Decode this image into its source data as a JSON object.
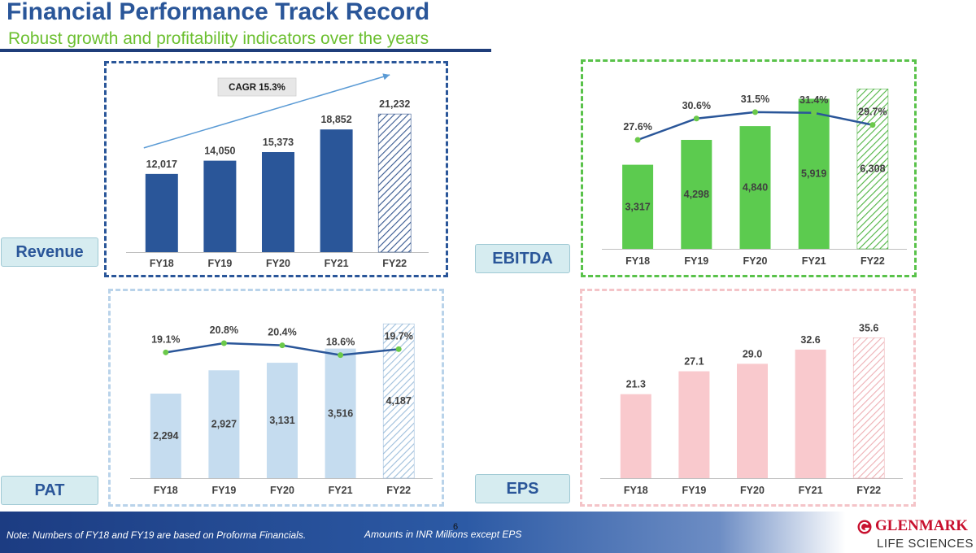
{
  "header": {
    "title": "Financial Performance Track Record",
    "subtitle": "Robust growth and profitability indicators over the years"
  },
  "colors": {
    "revenue": "#2a5699",
    "ebitda": "#5ccb4f",
    "pat": "#c5dcef",
    "eps": "#f9c9cd",
    "margin_line": "#2a5699",
    "margin_point": "#6bc94a"
  },
  "panels": {
    "revenue": {
      "label": "Revenue"
    },
    "ebitda": {
      "label": "EBITDA"
    },
    "pat": {
      "label": "PAT"
    },
    "eps": {
      "label": "EPS"
    }
  },
  "chart_data": [
    {
      "id": "revenue",
      "type": "bar",
      "title": "Revenue",
      "categories": [
        "FY18",
        "FY19",
        "FY20",
        "FY21",
        "FY22"
      ],
      "values": [
        12017,
        14050,
        15373,
        18852,
        21232
      ],
      "value_labels": [
        "12,017",
        "14,050",
        "15,373",
        "18,852",
        "21,232"
      ],
      "hatched": [
        false,
        false,
        false,
        false,
        true
      ],
      "ylim": [
        0,
        24000
      ],
      "annotation": "CAGR 15.3%",
      "label_position": "top"
    },
    {
      "id": "ebitda",
      "type": "bar",
      "title": "EBITDA",
      "categories": [
        "FY18",
        "FY19",
        "FY20",
        "FY21",
        "FY22"
      ],
      "values": [
        3317,
        4298,
        4840,
        5919,
        6308
      ],
      "value_labels": [
        "3,317",
        "4,298",
        "4,840",
        "5,919",
        "6,308"
      ],
      "hatched": [
        false,
        false,
        false,
        false,
        true
      ],
      "ylim": [
        0,
        6800
      ],
      "label_position": "inside",
      "line_series": {
        "name": "EBITDA Margin",
        "values": [
          27.6,
          30.6,
          31.5,
          31.4,
          29.7
        ],
        "labels": [
          "27.6%",
          "30.6%",
          "31.5%",
          "31.4%",
          "29.7%"
        ],
        "ylim": [
          22,
          34
        ]
      }
    },
    {
      "id": "pat",
      "type": "bar",
      "title": "PAT",
      "categories": [
        "FY18",
        "FY19",
        "FY20",
        "FY21",
        "FY22"
      ],
      "values": [
        2294,
        2927,
        3131,
        3516,
        4187
      ],
      "value_labels": [
        "2,294",
        "2,927",
        "3,131",
        "3,516",
        "4,187"
      ],
      "hatched": [
        false,
        false,
        false,
        false,
        true
      ],
      "ylim": [
        0,
        4500
      ],
      "label_position": "inside",
      "line_series": {
        "name": "PAT Margin",
        "values": [
          19.1,
          20.8,
          20.4,
          18.6,
          19.7
        ],
        "labels": [
          "19.1%",
          "20.8%",
          "20.4%",
          "18.6%",
          "19.7%"
        ],
        "ylim": [
          10,
          25
        ]
      }
    },
    {
      "id": "eps",
      "type": "bar",
      "title": "EPS",
      "categories": [
        "FY18",
        "FY19",
        "FY20",
        "FY21",
        "FY22"
      ],
      "values": [
        21.3,
        27.1,
        29.0,
        32.6,
        35.6
      ],
      "value_labels": [
        "21.3",
        "27.1",
        "29.0",
        "32.6",
        "35.6"
      ],
      "hatched": [
        false,
        false,
        false,
        false,
        true
      ],
      "ylim": [
        0,
        40
      ],
      "label_position": "top"
    }
  ],
  "footer": {
    "note": "Note: Numbers of FY18 and FY19 are based on Proforma Financials.",
    "amounts": "Amounts in INR Millions except EPS",
    "page_number": "6"
  },
  "logo": {
    "name": "GLENMARK",
    "tagline": "LIFE SCIENCES"
  }
}
